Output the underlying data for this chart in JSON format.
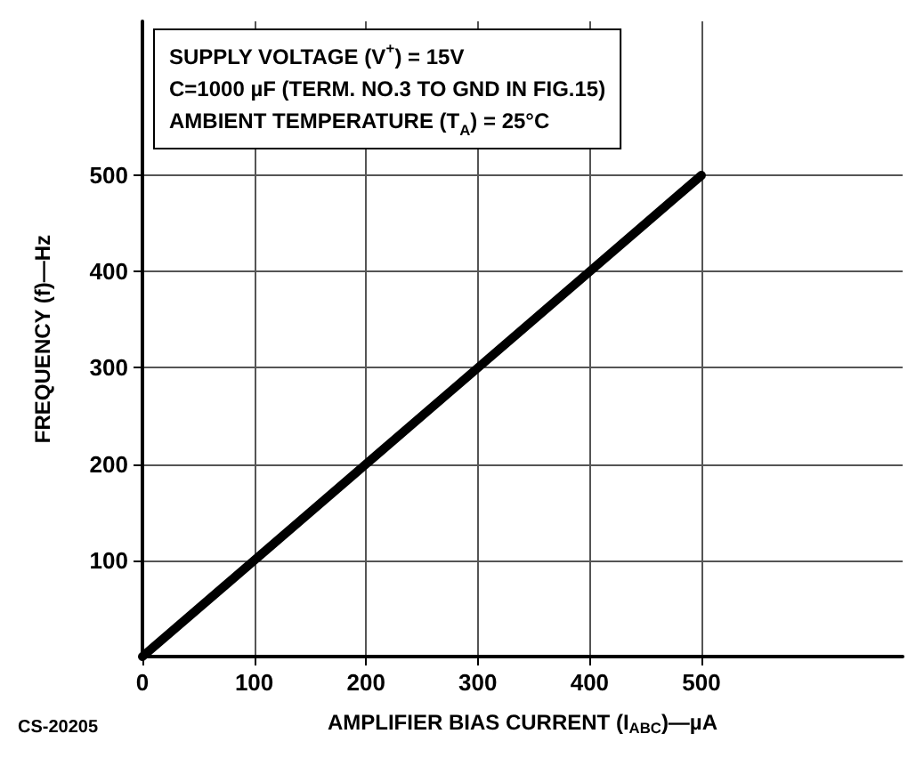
{
  "chart_data": {
    "type": "line",
    "xlabel": "AMPLIFIER BIAS CURRENT (I$_{ABC}$)—µA",
    "ylabel": "FREQUENCY (f)—Hz",
    "x": [
      0,
      500
    ],
    "series": [
      {
        "color": "#000000",
        "values": [
          0,
          500
        ]
      }
    ],
    "xlim": [
      0,
      680
    ],
    "ylim": [
      0,
      660
    ],
    "xticks": [
      0,
      100,
      200,
      300,
      400,
      500
    ],
    "yticks": [
      100,
      200,
      300,
      400,
      500
    ],
    "grid": true,
    "marker": "none",
    "line_style": "solid",
    "annotations": [
      "SUPPLY VOLTAGE (V$^{+}$) = 15V",
      "C=1000 µF (TERM. NO.3 TO GND IN FIG.15)",
      "AMBIENT TEMPERATURE (T$_{A}$) = 25°C",
      "CS-20205"
    ]
  }
}
